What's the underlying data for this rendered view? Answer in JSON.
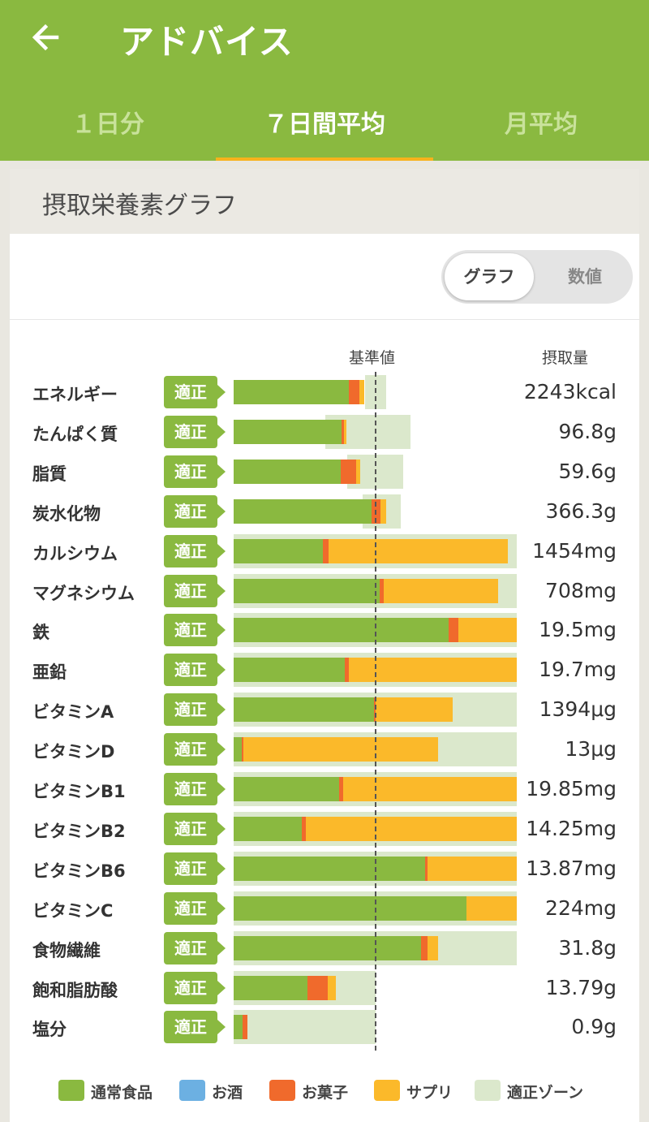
{
  "header": {
    "title": "アドバイス",
    "back_icon": "arrow-left-icon"
  },
  "tabs": [
    {
      "label": "１日分",
      "active": false
    },
    {
      "label": "７日間平均",
      "active": true
    },
    {
      "label": "月平均",
      "active": false
    }
  ],
  "card": {
    "title": "摂取栄養素グラフ",
    "toggle": {
      "graph_label": "グラフ",
      "value_label": "数値",
      "selected": "グラフ"
    },
    "col_reference": "基準値",
    "col_intake": "摂取量",
    "status_label": "適正",
    "scale_max": 200
  },
  "colors": {
    "normal_food": "#8ab940",
    "alcohol": "#6cb0e2",
    "snack": "#f06a2c",
    "supplement": "#fbb92a",
    "zone": "#dbe8cc",
    "accent": "#f7b21c"
  },
  "nutrients": [
    {
      "name": "エネルギー",
      "value": "2243kcal",
      "status": "適正",
      "zone": [
        93,
        108
      ],
      "normal": 81.5,
      "alcohol": 0,
      "snack": 7.5,
      "supplement": 3
    },
    {
      "name": "たんぱく質",
      "value": "96.8g",
      "status": "適正",
      "zone": [
        65,
        125
      ],
      "normal": 76.5,
      "alcohol": 0,
      "snack": 1.5,
      "supplement": 1.5
    },
    {
      "name": "脂質",
      "value": "59.6g",
      "status": "適正",
      "zone": [
        80,
        120
      ],
      "normal": 75.5,
      "alcohol": 0,
      "snack": 11,
      "supplement": 3
    },
    {
      "name": "炭水化物",
      "value": "366.3g",
      "status": "適正",
      "zone": [
        91,
        118
      ],
      "normal": 97.5,
      "alcohol": 0,
      "snack": 6.5,
      "supplement": 4
    },
    {
      "name": "カルシウム",
      "value": "1454mg",
      "status": "適正",
      "zone": [
        0,
        200
      ],
      "normal": 63,
      "alcohol": 0,
      "snack": 4,
      "supplement": 126.5
    },
    {
      "name": "マグネシウム",
      "value": "708mg",
      "status": "適正",
      "zone": [
        0,
        200
      ],
      "normal": 103,
      "alcohol": 0,
      "snack": 3,
      "supplement": 81
    },
    {
      "name": "鉄",
      "value": "19.5mg",
      "status": "適正",
      "zone": [
        0,
        200
      ],
      "normal": 152,
      "alcohol": 0,
      "snack": 6.5,
      "supplement": 41.5
    },
    {
      "name": "亜鉛",
      "value": "19.7mg",
      "status": "適正",
      "zone": [
        0,
        200
      ],
      "normal": 78.5,
      "alcohol": 0,
      "snack": 3,
      "supplement": 118.5
    },
    {
      "name": "ビタミンA",
      "value": "1394μg",
      "status": "適正",
      "zone": [
        0,
        200
      ],
      "normal": 99,
      "alcohol": 0,
      "snack": 1.5,
      "supplement": 54
    },
    {
      "name": "ビタミンD",
      "value": "13μg",
      "status": "適正",
      "zone": [
        0,
        200
      ],
      "normal": 5.5,
      "alcohol": 0,
      "snack": 1.5,
      "supplement": 137.5
    },
    {
      "name": "ビタミンB1",
      "value": "19.85mg",
      "status": "適正",
      "zone": [
        0,
        200
      ],
      "normal": 74.5,
      "alcohol": 0,
      "snack": 3,
      "supplement": 122.5
    },
    {
      "name": "ビタミンB2",
      "value": "14.25mg",
      "status": "適正",
      "zone": [
        0,
        200
      ],
      "normal": 48,
      "alcohol": 0,
      "snack": 3,
      "supplement": 149
    },
    {
      "name": "ビタミンB6",
      "value": "13.87mg",
      "status": "適正",
      "zone": [
        0,
        200
      ],
      "normal": 135.5,
      "alcohol": 0,
      "snack": 1.5,
      "supplement": 63
    },
    {
      "name": "ビタミンC",
      "value": "224mg",
      "status": "適正",
      "zone": [
        0,
        200
      ],
      "normal": 164.5,
      "alcohol": 0,
      "snack": 0,
      "supplement": 35.5
    },
    {
      "name": "食物繊維",
      "value": "31.8g",
      "status": "適正",
      "zone": [
        0,
        200
      ],
      "normal": 132.5,
      "alcohol": 0,
      "snack": 4.5,
      "supplement": 7.5
    },
    {
      "name": "飽和脂肪酸",
      "value": "13.79g",
      "status": "適正",
      "zone": [
        0,
        100
      ],
      "normal": 52,
      "alcohol": 0,
      "snack": 14.5,
      "supplement": 5.5
    },
    {
      "name": "塩分",
      "value": "0.9g",
      "status": "適正",
      "zone": [
        0,
        100
      ],
      "normal": 6.5,
      "alcohol": 0,
      "snack": 3,
      "supplement": 0
    }
  ],
  "legend": [
    {
      "label": "通常食品",
      "color": "#8ab940"
    },
    {
      "label": "お酒",
      "color": "#6cb0e2"
    },
    {
      "label": "お菓子",
      "color": "#f06a2c"
    },
    {
      "label": "サプリ",
      "color": "#fbb92a"
    },
    {
      "label": "適正ゾーン",
      "color": "#dbe8cc"
    }
  ]
}
